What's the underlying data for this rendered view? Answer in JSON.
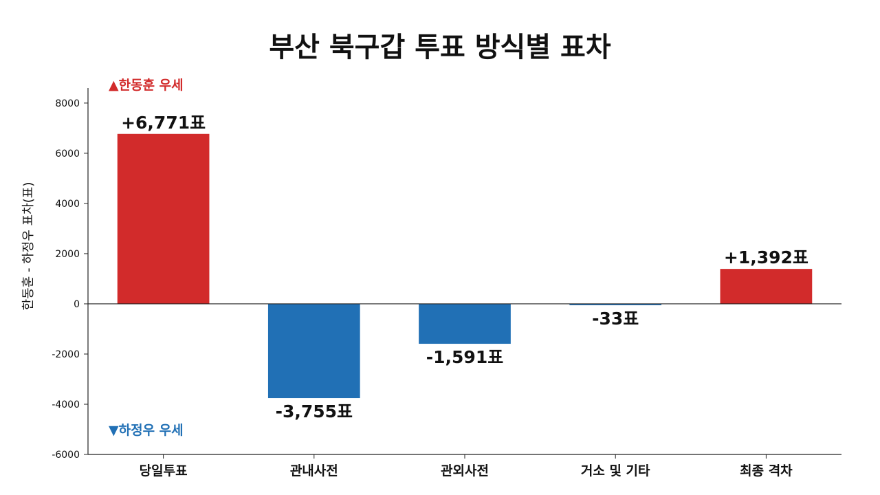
{
  "chart_data": {
    "type": "bar",
    "title": "부산 북구갑 투표 방식별 표차",
    "xlabel": "",
    "ylabel": "한동훈 - 하정우 표차(표)",
    "categories": [
      "당일투표",
      "관내사전",
      "관외사전",
      "거소 및 기타",
      "최종 격차"
    ],
    "values": [
      6771,
      -3755,
      -1591,
      -33,
      1392
    ],
    "value_labels": [
      "+6,771표",
      "-3,755표",
      "-1,591표",
      "-33표",
      "+1,392표"
    ],
    "ylim": [
      -6000,
      8600
    ],
    "yticks": [
      8000,
      6000,
      4000,
      2000,
      0,
      -2000,
      -4000,
      -6000
    ],
    "ytick_labels": [
      "8000",
      "6000",
      "4000",
      "2000",
      "0",
      "-2000",
      "-4000",
      "-6000"
    ],
    "grid": false,
    "legend": "none",
    "annotations": {
      "top": "▲한동훈 우세",
      "bottom": "▼하정우 우세"
    },
    "colors": {
      "positive": "#d22b2b",
      "negative": "#2170b5",
      "top_annotation": "#d22b2b",
      "bottom_annotation": "#2170b5",
      "axis": "#222222",
      "text": "#111111"
    }
  }
}
